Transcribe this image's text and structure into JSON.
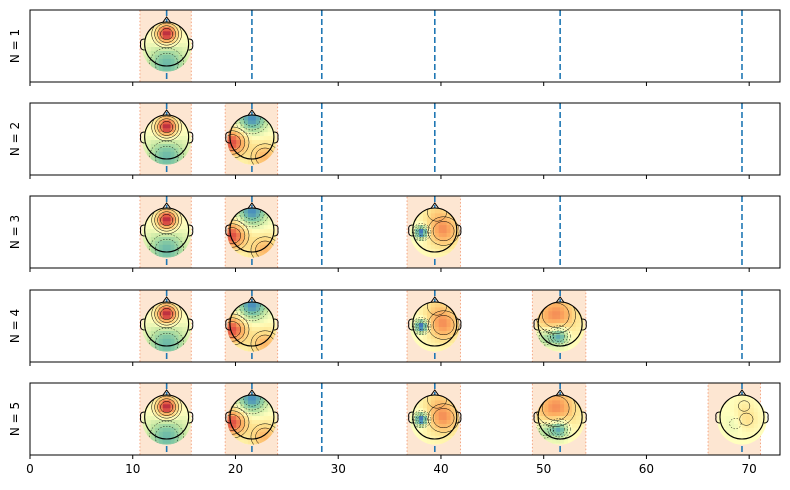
{
  "chart_data": {
    "type": "topomap-timeline",
    "xlim": [
      0,
      73
    ],
    "xticks": [
      0,
      10,
      20,
      30,
      40,
      50,
      60,
      70
    ],
    "markers": [
      13.3,
      21.6,
      28.4,
      39.4,
      51.6,
      69.3
    ],
    "rows": [
      {
        "label": "N = 1",
        "topomaps": [
          {
            "x": 13.3,
            "window": [
              10.7,
              15.7
            ],
            "pattern": "frontal-positive"
          }
        ]
      },
      {
        "label": "N = 2",
        "topomaps": [
          {
            "x": 13.3,
            "window": [
              10.7,
              15.7
            ],
            "pattern": "frontal-positive"
          },
          {
            "x": 21.6,
            "window": [
              19.0,
              24.1
            ],
            "pattern": "frontal-negative-left-positive"
          }
        ]
      },
      {
        "label": "N = 3",
        "topomaps": [
          {
            "x": 13.3,
            "window": [
              10.7,
              15.7
            ],
            "pattern": "frontal-positive"
          },
          {
            "x": 21.6,
            "window": [
              19.0,
              24.1
            ],
            "pattern": "frontal-negative-left-positive"
          },
          {
            "x": 39.4,
            "window": [
              36.7,
              41.9
            ],
            "pattern": "left-negative-right-positive"
          }
        ]
      },
      {
        "label": "N = 4",
        "topomaps": [
          {
            "x": 13.3,
            "window": [
              10.7,
              15.7
            ],
            "pattern": "frontal-positive"
          },
          {
            "x": 21.6,
            "window": [
              19.0,
              24.1
            ],
            "pattern": "frontal-negative-left-positive"
          },
          {
            "x": 39.4,
            "window": [
              36.7,
              41.9
            ],
            "pattern": "left-negative-right-positive"
          },
          {
            "x": 51.6,
            "window": [
              48.9,
              54.1
            ],
            "pattern": "frontal-positive-occipital-negative"
          }
        ]
      },
      {
        "label": "N = 5",
        "topomaps": [
          {
            "x": 13.3,
            "window": [
              10.7,
              15.7
            ],
            "pattern": "frontal-positive"
          },
          {
            "x": 21.6,
            "window": [
              19.0,
              24.1
            ],
            "pattern": "frontal-negative-left-positive"
          },
          {
            "x": 39.4,
            "window": [
              36.7,
              41.9
            ],
            "pattern": "left-negative-right-positive"
          },
          {
            "x": 51.6,
            "window": [
              48.9,
              54.1
            ],
            "pattern": "frontal-positive-occipital-negative"
          },
          {
            "x": 69.3,
            "window": [
              66.0,
              71.1
            ],
            "pattern": "flat"
          }
        ]
      }
    ],
    "colors": {
      "marker_line": "#1f77b4",
      "window_fill": "#fde6d2",
      "window_edge": "#f4a582",
      "colormap": "RdYlBu-spectral"
    }
  }
}
